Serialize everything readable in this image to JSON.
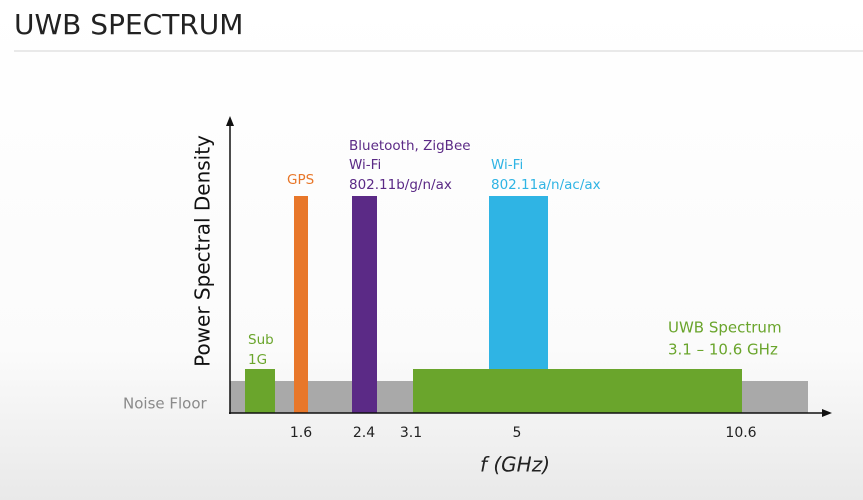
{
  "header": {
    "title": "UWB SPECTRUM"
  },
  "diagram": {
    "y_axis_label": "Power Spectral Density",
    "x_axis_label": "f (GHz)",
    "noise_floor_label": "Noise Floor",
    "x_tick_labels": [
      "1.6",
      "2.4",
      "3.1",
      "5",
      "10.6"
    ],
    "bands": [
      {
        "lines": [
          "Sub",
          "1G"
        ]
      },
      {
        "lines": [
          "GPS"
        ]
      },
      {
        "lines": [
          "Bluetooth, ZigBee",
          "Wi-Fi",
          "802.11b/g/n/ax"
        ]
      },
      {
        "lines": [
          "Wi-Fi",
          "802.11a/n/ac/ax"
        ]
      },
      {
        "lines": [
          "UWB Spectrum",
          "3.1 – 10.6 GHz"
        ]
      }
    ]
  }
}
